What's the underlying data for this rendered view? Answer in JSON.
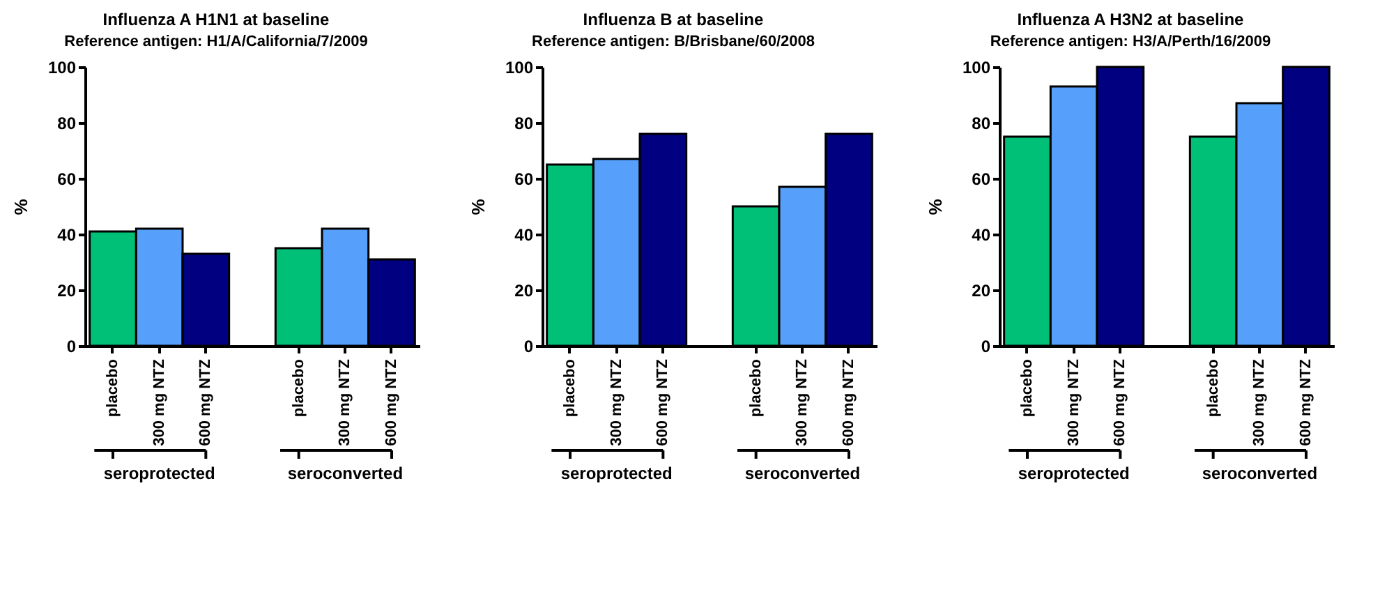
{
  "chart_data": [
    {
      "type": "bar",
      "title": "Influenza A H1N1 at baseline",
      "subtitle": "Reference antigen: H1/A/California/7/2009",
      "ylabel": "%",
      "categories": [
        "placebo",
        "300 mg NTZ",
        "600 mg NTZ",
        null,
        "placebo",
        "300 mg NTZ",
        "600 mg NTZ"
      ],
      "values": [
        41,
        42,
        33,
        null,
        35,
        42,
        31
      ],
      "colors": [
        "#00c078",
        "#56a0fb",
        "#000080",
        null,
        "#00c078",
        "#56a0fb",
        "#000080"
      ],
      "ylim": [
        0,
        100
      ],
      "yticks": [
        0,
        20,
        40,
        60,
        80,
        100
      ],
      "grid": false,
      "annotations": [
        "seroprotected",
        "seroconverted"
      ]
    },
    {
      "type": "bar",
      "title": "Influenza B at baseline",
      "subtitle": "Reference antigen: B/Brisbane/60/2008",
      "ylabel": "%",
      "categories": [
        "placebo",
        "300 mg NTZ",
        "600 mg NTZ",
        null,
        "placebo",
        "300 mg NTZ",
        "600 mg NTZ"
      ],
      "values": [
        65,
        67,
        76,
        null,
        50,
        57,
        76
      ],
      "colors": [
        "#00c078",
        "#56a0fb",
        "#000080",
        null,
        "#00c078",
        "#56a0fb",
        "#000080"
      ],
      "ylim": [
        0,
        100
      ],
      "yticks": [
        0,
        20,
        40,
        60,
        80,
        100
      ],
      "grid": false,
      "annotations": [
        "seroprotected",
        "seroconverted"
      ]
    },
    {
      "type": "bar",
      "title": "Influenza A H3N2 at baseline",
      "subtitle": "Reference antigen: H3/A/Perth/16/2009",
      "ylabel": "%",
      "categories": [
        "placebo",
        "300 mg NTZ",
        "600 mg NTZ",
        null,
        "placebo",
        "300 mg NTZ",
        "600 mg NTZ"
      ],
      "values": [
        75,
        93,
        100,
        null,
        75,
        87,
        100
      ],
      "colors": [
        "#00c078",
        "#56a0fb",
        "#000080",
        null,
        "#00c078",
        "#56a0fb",
        "#000080"
      ],
      "ylim": [
        0,
        100
      ],
      "yticks": [
        0,
        20,
        40,
        60,
        80,
        100
      ],
      "grid": false,
      "annotations": [
        "seroprotected",
        "seroconverted"
      ]
    }
  ]
}
